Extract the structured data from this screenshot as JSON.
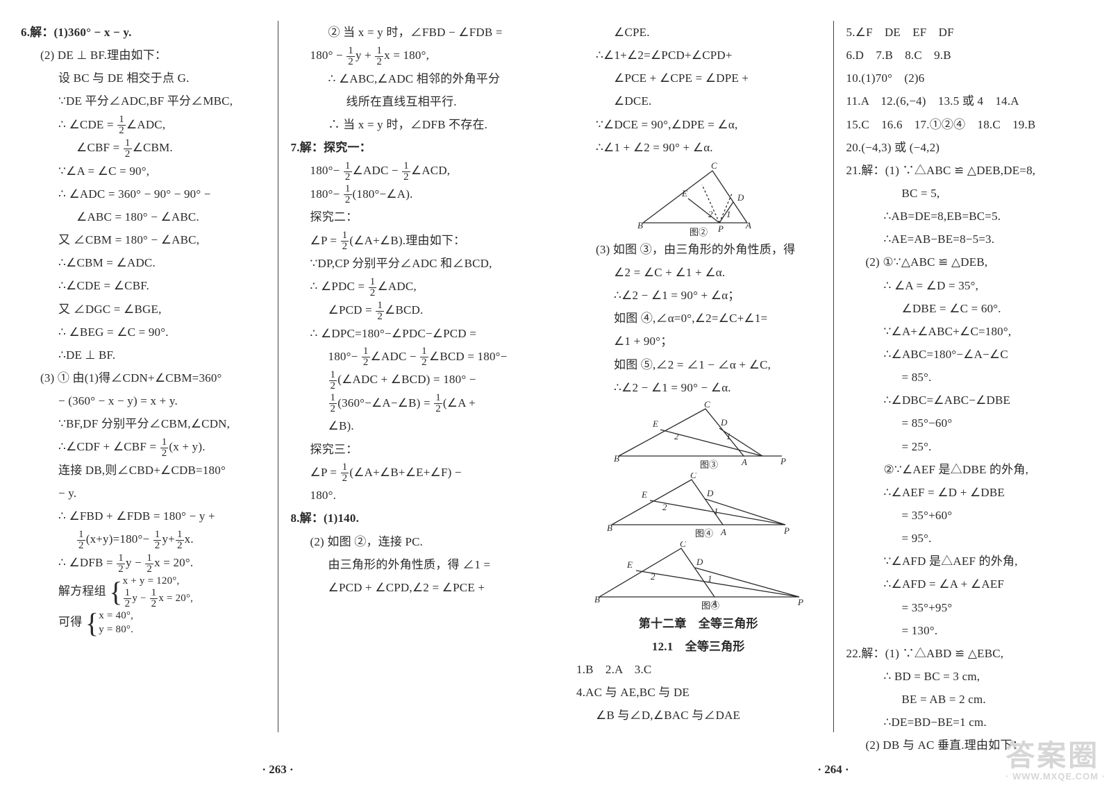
{
  "page_left_num": "· 263 ·",
  "page_right_num": "· 264 ·",
  "watermark_main": "答案圈",
  "watermark_sub": "· WWW.MXQE.COM ·",
  "left": {
    "col1": [
      {
        "cls": "ln bold",
        "txt": "6.解：(1)360° − x − y."
      },
      {
        "cls": "ln indent1",
        "txt": "(2) DE ⊥ BF.理由如下："
      },
      {
        "cls": "ln indent2",
        "txt": "设 BC 与 DE 相交于点 G."
      },
      {
        "cls": "ln indent2",
        "txt": "∵DE 平分∠ADC,BF 平分∠MBC,"
      },
      {
        "cls": "ln indent2",
        "txt": "∴ ∠CDE = ½∠ADC,",
        "frac_half_adc": true
      },
      {
        "cls": "ln indent3",
        "txt": "∠CBF = ½∠CBM.",
        "frac_half_cbm": true
      },
      {
        "cls": "ln indent2",
        "txt": "∵∠A = ∠C = 90°,"
      },
      {
        "cls": "ln indent2",
        "txt": "∴ ∠ADC = 360° − 90° − 90° −"
      },
      {
        "cls": "ln indent3",
        "txt": "∠ABC = 180° − ∠ABC."
      },
      {
        "cls": "ln indent2",
        "txt": "又 ∠CBM = 180° − ∠ABC,"
      },
      {
        "cls": "ln indent2",
        "txt": "∴∠CBM = ∠ADC."
      },
      {
        "cls": "ln indent2",
        "txt": "∴∠CDE = ∠CBF."
      },
      {
        "cls": "ln indent2",
        "txt": "又 ∠DGC = ∠BGE,"
      },
      {
        "cls": "ln indent2",
        "txt": "∴ ∠BEG = ∠C = 90°."
      },
      {
        "cls": "ln indent2",
        "txt": "∴DE ⊥ BF."
      },
      {
        "cls": "ln indent1",
        "txt": "(3) ① 由(1)得∠CDN+∠CBM=360°"
      },
      {
        "cls": "ln indent2",
        "txt": "− (360° − x − y) = x + y."
      },
      {
        "cls": "ln indent2",
        "txt": "∵BF,DF 分别平分∠CBM,∠CDN,"
      },
      {
        "cls": "ln indent2",
        "txt": "∴∠CDF + ∠CBF = ½(x + y).",
        "frac_half_xy": true
      },
      {
        "cls": "ln indent2",
        "txt": "连接 DB,则∠CBD+∠CDB=180°"
      },
      {
        "cls": "ln indent2",
        "txt": "− y."
      },
      {
        "cls": "ln indent2",
        "txt": "∴ ∠FBD + ∠FDB = 180° − y +"
      },
      {
        "cls": "ln indent3",
        "txt": "½(x+y)=180°− ½y+½x.",
        "frac_triple": true
      },
      {
        "cls": "ln indent2",
        "txt": "∴ ∠DFB = ½y − ½x = 20°.",
        "frac_dfb": true
      },
      {
        "cls": "ln indent2",
        "txt": "解方程组",
        "system1": true
      },
      {
        "cls": "ln indent2",
        "txt": "可得",
        "system2": true
      }
    ],
    "col2": [
      {
        "cls": "ln indent2",
        "txt": "② 当 x = y 时，∠FBD − ∠FDB ="
      },
      {
        "cls": "ln indent1",
        "txt": "180° − ½y + ½x = 180°,",
        "frac_180": true
      },
      {
        "cls": "ln indent2",
        "txt": "∴ ∠ABC,∠ADC 相邻的外角平分"
      },
      {
        "cls": "ln indent3",
        "txt": "线所在直线互相平行."
      },
      {
        "cls": "ln indent2",
        "txt": "∴ 当 x = y 时，∠DFB 不存在."
      },
      {
        "cls": "ln bold",
        "txt": "7.解：探究一："
      },
      {
        "cls": "ln indent1",
        "txt": "180°− ½∠ADC − ½∠ACD,",
        "frac_adc_acd": true
      },
      {
        "cls": "ln indent1",
        "txt": "180°− ½(180°−∠A).",
        "frac_180A": true
      },
      {
        "cls": "ln indent1",
        "txt": "探究二："
      },
      {
        "cls": "ln indent1",
        "txt": "∠P = ½(∠A+∠B).理由如下：",
        "frac_P": true
      },
      {
        "cls": "ln indent1",
        "txt": "∵DP,CP 分别平分∠ADC 和∠BCD,"
      },
      {
        "cls": "ln indent1",
        "txt": "∴ ∠PDC = ½∠ADC,",
        "frac_pdc": true
      },
      {
        "cls": "ln indent2",
        "txt": "∠PCD = ½∠BCD.",
        "frac_pcd": true
      },
      {
        "cls": "ln indent1",
        "txt": "∴ ∠DPC=180°−∠PDC−∠PCD ="
      },
      {
        "cls": "ln indent2",
        "txt": "180°− ½∠ADC − ½∠BCD = 180°−",
        "frac_adcbcd": true
      },
      {
        "cls": "ln indent2",
        "txt": "½(∠ADC + ∠BCD) = 180° −",
        "frac_sum1": true
      },
      {
        "cls": "ln indent2",
        "txt": "½(360°−∠A−∠B) = ½(∠A +",
        "frac_sum2": true
      },
      {
        "cls": "ln indent2",
        "txt": "∠B)."
      },
      {
        "cls": "ln indent1",
        "txt": "探究三："
      },
      {
        "cls": "ln indent1",
        "txt": "∠P = ½(∠A+∠B+∠E+∠F) −",
        "frac_P2": true
      },
      {
        "cls": "ln indent1",
        "txt": "180°."
      },
      {
        "cls": "ln bold",
        "txt": "8.解：(1)140."
      },
      {
        "cls": "ln indent1",
        "txt": "(2) 如图 ②，连接 PC."
      },
      {
        "cls": "ln indent2",
        "txt": "由三角形的外角性质，得 ∠1 ="
      },
      {
        "cls": "ln indent2",
        "txt": "∠PCD + ∠CPD,∠2 = ∠PCE +"
      }
    ]
  },
  "right": {
    "col1": [
      {
        "cls": "ln indent2",
        "txt": "∠CPE."
      },
      {
        "cls": "ln indent1",
        "txt": "∴∠1+∠2=∠PCD+∠CPD+"
      },
      {
        "cls": "ln indent2",
        "txt": "∠PCE + ∠CPE = ∠DPE +"
      },
      {
        "cls": "ln indent2",
        "txt": "∠DCE."
      },
      {
        "cls": "ln indent1",
        "txt": "∵∠DCE = 90°,∠DPE = ∠α,"
      },
      {
        "cls": "ln indent1",
        "txt": "∴∠1 + ∠2 = 90° + ∠α."
      },
      {
        "svg": "tri1"
      },
      {
        "cls": "ln indent1",
        "txt": "(3) 如图 ③，由三角形的外角性质，得"
      },
      {
        "cls": "ln indent2",
        "txt": "∠2 = ∠C + ∠1 + ∠α."
      },
      {
        "cls": "ln indent2",
        "txt": "∴∠2 − ∠1 = 90° + ∠α；"
      },
      {
        "cls": "ln indent2",
        "txt": "如图 ④,∠α=0°,∠2=∠C+∠1="
      },
      {
        "cls": "ln indent2",
        "txt": "∠1 + 90°；"
      },
      {
        "cls": "ln indent2",
        "txt": "如图 ⑤,∠2 = ∠1 − ∠α + ∠C,"
      },
      {
        "cls": "ln indent2",
        "txt": "∴∠2 − ∠1 = 90° − ∠α."
      },
      {
        "svg": "tri2"
      },
      {
        "svg": "tri3"
      },
      {
        "svg": "tri4"
      },
      {
        "cls": "ln bold center",
        "txt": "第十二章　全等三角形"
      },
      {
        "cls": "ln bold center",
        "txt": "12.1　全等三角形"
      },
      {
        "cls": "ln",
        "txt": "1.B　2.A　3.C"
      },
      {
        "cls": "ln",
        "txt": "4.AC 与 AE,BC 与 DE"
      },
      {
        "cls": "ln indent1",
        "txt": "∠B 与∠D,∠BAC 与∠DAE"
      }
    ],
    "col2": [
      {
        "cls": "ln",
        "txt": "5.∠F　DE　EF　DF"
      },
      {
        "cls": "ln",
        "txt": "6.D　7.B　8.C　9.B"
      },
      {
        "cls": "ln",
        "txt": "10.(1)70°　(2)6"
      },
      {
        "cls": "ln",
        "txt": "11.A　12.(6,−4)　13.5 或 4　14.A"
      },
      {
        "cls": "ln",
        "txt": "15.C　16.6　17.①②④　18.C　19.B"
      },
      {
        "cls": "ln",
        "txt": "20.(−4,3) 或 (−4,2)"
      },
      {
        "cls": "ln",
        "txt": "21.解：(1) ∵△ABC ≌ △DEB,DE=8,"
      },
      {
        "cls": "ln indent3",
        "txt": "BC = 5,"
      },
      {
        "cls": "ln indent2",
        "txt": "∴AB=DE=8,EB=BC=5."
      },
      {
        "cls": "ln indent2",
        "txt": "∴AE=AB−BE=8−5=3."
      },
      {
        "cls": "ln indent1",
        "txt": "(2) ①∵△ABC ≌ △DEB,"
      },
      {
        "cls": "ln indent2",
        "txt": "∴ ∠A = ∠D = 35°,"
      },
      {
        "cls": "ln indent3",
        "txt": "∠DBE = ∠C = 60°."
      },
      {
        "cls": "ln indent2",
        "txt": "∵∠A+∠ABC+∠C=180°,"
      },
      {
        "cls": "ln indent2",
        "txt": "∴∠ABC=180°−∠A−∠C"
      },
      {
        "cls": "ln indent3",
        "txt": "= 85°."
      },
      {
        "cls": "ln indent2",
        "txt": "∴∠DBC=∠ABC−∠DBE"
      },
      {
        "cls": "ln indent3",
        "txt": "= 85°−60°"
      },
      {
        "cls": "ln indent3",
        "txt": "= 25°."
      },
      {
        "cls": "ln indent2",
        "txt": "②∵∠AEF 是△DBE 的外角,"
      },
      {
        "cls": "ln indent2",
        "txt": "∴∠AEF = ∠D + ∠DBE"
      },
      {
        "cls": "ln indent3",
        "txt": "= 35°+60°"
      },
      {
        "cls": "ln indent3",
        "txt": "= 95°."
      },
      {
        "cls": "ln indent2",
        "txt": "∵∠AFD 是△AEF 的外角,"
      },
      {
        "cls": "ln indent2",
        "txt": "∴∠AFD = ∠A + ∠AEF"
      },
      {
        "cls": "ln indent3",
        "txt": "= 35°+95°"
      },
      {
        "cls": "ln indent3",
        "txt": "= 130°."
      },
      {
        "cls": "ln",
        "txt": "22.解：(1) ∵△ABD ≌ △EBC,"
      },
      {
        "cls": "ln indent2",
        "txt": "∴ BD = BC = 3 cm,"
      },
      {
        "cls": "ln indent3",
        "txt": "BE = AB = 2 cm."
      },
      {
        "cls": "ln indent2",
        "txt": "∴DE=BD−BE=1 cm."
      },
      {
        "cls": "ln indent1",
        "txt": "(2) DB 与 AC 垂直.理由如下："
      }
    ]
  },
  "svg": {
    "stroke": "#2a2a2a",
    "fontsize": 13
  }
}
